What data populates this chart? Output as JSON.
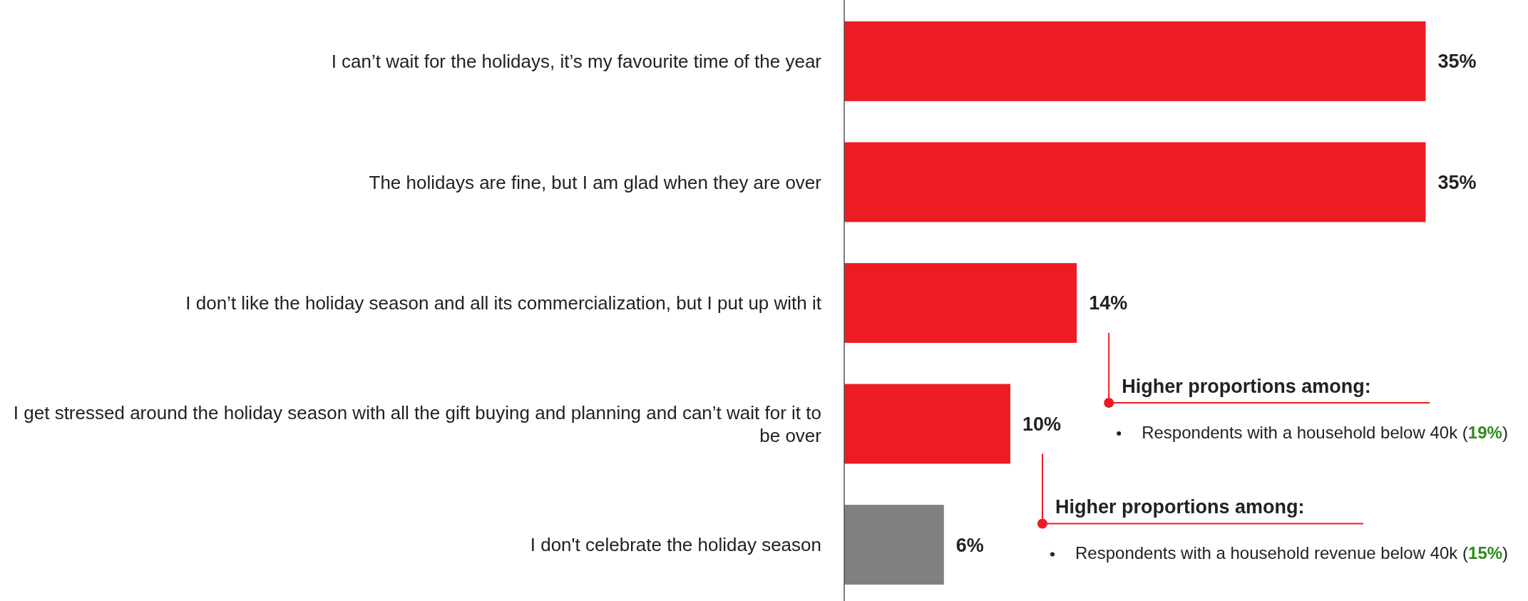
{
  "chart_data": {
    "type": "bar",
    "orientation": "horizontal",
    "categories": [
      "I can’t wait for the holidays, it’s my favourite time of the year",
      "The holidays are fine, but I am glad when they are over",
      "I don’t like the holiday season and all its commercialization, but I put up with it",
      "I get stressed around the holiday season with all the gift buying and planning and can’t wait for it to be over",
      "I don't celebrate the holiday season"
    ],
    "values": [
      35,
      35,
      14,
      10,
      6
    ],
    "colors": [
      "#ed1c24",
      "#ed1c24",
      "#ed1c24",
      "#ed1c24",
      "#808080"
    ],
    "value_labels": [
      "35%",
      "35%",
      "14%",
      "10%",
      "6%"
    ],
    "tick_labels": "y",
    "annotations": [
      "Higher proportions among:",
      "Respondents with a household below 40k (19%)",
      "Higher proportions among:",
      "Respondents with a household revenue below 40k (15%)"
    ]
  }
}
